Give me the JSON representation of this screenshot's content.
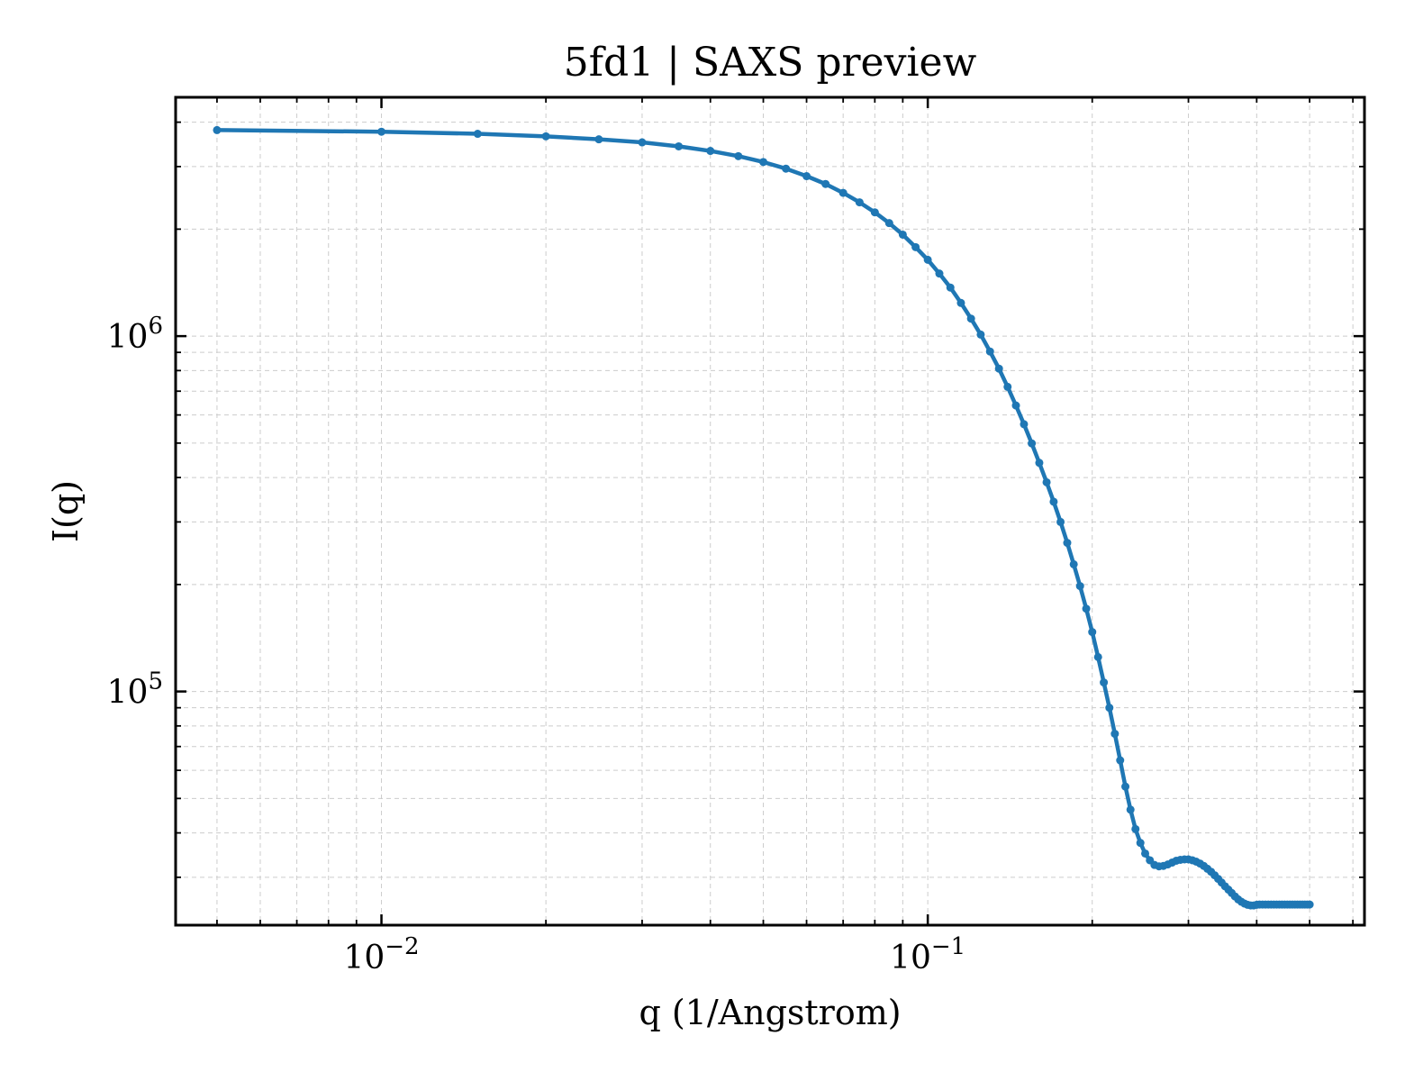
{
  "chart_data": {
    "type": "line",
    "title": "5fd1 | SAXS preview",
    "xlabel": "q (1/Angstrom)",
    "ylabel": "I(q)",
    "xscale": "log",
    "yscale": "log",
    "xlim": [
      0.0042,
      0.63
    ],
    "ylim": [
      22000,
      4700000
    ],
    "grid": true,
    "legend": "none",
    "x_ticks": [
      {
        "value": 0.01,
        "base": "10",
        "exp": "−2"
      },
      {
        "value": 0.1,
        "base": "10",
        "exp": "−1"
      }
    ],
    "y_ticks": [
      {
        "value": 100000,
        "base": "10",
        "exp": "5"
      },
      {
        "value": 1000000,
        "base": "10",
        "exp": "6"
      }
    ],
    "series": [
      {
        "color": "#1f77b4",
        "x": [
          0.005,
          0.01,
          0.015,
          0.02,
          0.025,
          0.03,
          0.035,
          0.04,
          0.045,
          0.05,
          0.055,
          0.06,
          0.065,
          0.07,
          0.075,
          0.08,
          0.085,
          0.09,
          0.095,
          0.1,
          0.105,
          0.11,
          0.115,
          0.12,
          0.125,
          0.13,
          0.135,
          0.14,
          0.145,
          0.15,
          0.155,
          0.16,
          0.165,
          0.17,
          0.175,
          0.18,
          0.185,
          0.19,
          0.195,
          0.2,
          0.205,
          0.21,
          0.215,
          0.22,
          0.225,
          0.23,
          0.235,
          0.24,
          0.245,
          0.25,
          0.255,
          0.26,
          0.265,
          0.27,
          0.275,
          0.28,
          0.285,
          0.29,
          0.295,
          0.3,
          0.305,
          0.31,
          0.315,
          0.32,
          0.325,
          0.33,
          0.335,
          0.34,
          0.345,
          0.35,
          0.355,
          0.36,
          0.365,
          0.37,
          0.375,
          0.38,
          0.385,
          0.39,
          0.395,
          0.4,
          0.405,
          0.41,
          0.415,
          0.42,
          0.425,
          0.43,
          0.435,
          0.44,
          0.445,
          0.45,
          0.455,
          0.46,
          0.465,
          0.47,
          0.475,
          0.48,
          0.485,
          0.49,
          0.495,
          0.5
        ],
        "y": [
          3800000,
          3760000,
          3710000,
          3650000,
          3580000,
          3510000,
          3420000,
          3320000,
          3210000,
          3090000,
          2960000,
          2820000,
          2680000,
          2530000,
          2380000,
          2230000,
          2080000,
          1930000,
          1780000,
          1640000,
          1500000,
          1370000,
          1240000,
          1120000,
          1010000,
          905000,
          810000,
          720000,
          638000,
          565000,
          499000,
          440000,
          388000,
          342000,
          300000,
          262000,
          228000,
          198000,
          171000,
          147000,
          125000,
          106000,
          90000,
          76000,
          64000,
          54000,
          46500,
          41000,
          37500,
          35000,
          33500,
          32500,
          32200,
          32300,
          32600,
          33000,
          33400,
          33600,
          33700,
          33700,
          33500,
          33200,
          32800,
          32300,
          31700,
          31100,
          30400,
          29700,
          29000,
          28300,
          27700,
          27100,
          26500,
          26000,
          25600,
          25300,
          25100,
          25000,
          25000,
          25100,
          25150,
          25150,
          25150,
          25150,
          25150,
          25150,
          25150,
          25150,
          25150,
          25150,
          25150,
          25150,
          25150,
          25150,
          25150,
          25150,
          25150,
          25150,
          25150,
          25150
        ]
      }
    ]
  }
}
